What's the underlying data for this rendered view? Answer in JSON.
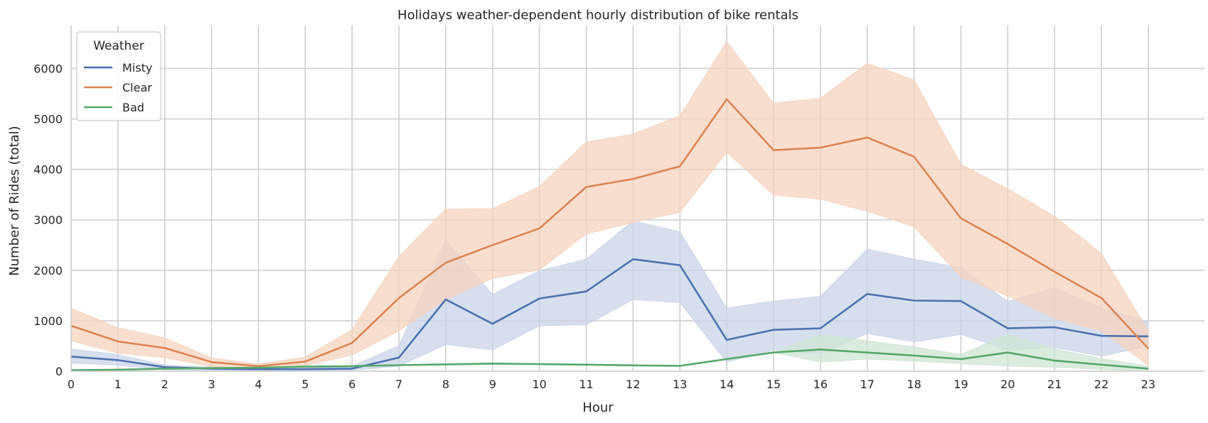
{
  "chart_data": {
    "type": "line",
    "title": "Holidays weather-dependent hourly distribution of bike rentals",
    "xlabel": "Hour",
    "ylabel": "Number of Rides (total)",
    "x": [
      0,
      1,
      2,
      3,
      4,
      5,
      6,
      7,
      8,
      9,
      10,
      11,
      12,
      13,
      14,
      15,
      16,
      17,
      18,
      19,
      20,
      21,
      22,
      23
    ],
    "x_ticks": [
      "0",
      "1",
      "2",
      "3",
      "4",
      "5",
      "6",
      "7",
      "8",
      "9",
      "10",
      "11",
      "12",
      "13",
      "14",
      "15",
      "16",
      "17",
      "18",
      "19",
      "20",
      "21",
      "22",
      "23"
    ],
    "xlim": [
      0,
      24.2
    ],
    "ylim": [
      0,
      6850
    ],
    "y_ticks": [
      0,
      1000,
      2000,
      3000,
      4000,
      5000,
      6000
    ],
    "grid": true,
    "legend": {
      "title": "Weather",
      "placement": "top-left"
    },
    "series": [
      {
        "name": "Misty",
        "color": "#4c72b0",
        "fill": "#c9d4e8",
        "values": [
          290,
          220,
          80,
          50,
          40,
          40,
          50,
          270,
          1420,
          940,
          1440,
          1580,
          2220,
          2100,
          620,
          820,
          850,
          1530,
          1400,
          1390,
          850,
          870,
          700,
          690
        ],
        "ci_low": [
          160,
          120,
          30,
          20,
          20,
          20,
          20,
          100,
          530,
          420,
          900,
          920,
          1420,
          1360,
          180,
          420,
          340,
          750,
          580,
          730,
          420,
          470,
          300,
          500
        ],
        "ci_high": [
          440,
          330,
          120,
          80,
          60,
          60,
          100,
          500,
          2600,
          1520,
          1990,
          2220,
          2980,
          2760,
          1250,
          1390,
          1480,
          2420,
          2220,
          2050,
          1380,
          1650,
          1250,
          980
        ]
      },
      {
        "name": "Clear",
        "color": "#dd8452",
        "fill": "#f6d3bf",
        "values": [
          900,
          590,
          460,
          180,
          100,
          190,
          560,
          1450,
          2150,
          2500,
          2830,
          3650,
          3810,
          4060,
          5390,
          4380,
          4430,
          4630,
          4250,
          3030,
          2520,
          1970,
          1450,
          450
        ],
        "ci_low": [
          600,
          360,
          270,
          90,
          50,
          110,
          320,
          800,
          1420,
          1840,
          2010,
          2720,
          2950,
          3150,
          4340,
          3490,
          3410,
          3170,
          2860,
          1870,
          1490,
          1050,
          800,
          120
        ],
        "ci_high": [
          1250,
          860,
          660,
          260,
          140,
          280,
          820,
          2270,
          3210,
          3220,
          3660,
          4540,
          4700,
          5060,
          6530,
          5310,
          5410,
          6100,
          5770,
          4100,
          3610,
          3070,
          2330,
          800
        ]
      },
      {
        "name": "Bad",
        "color": "#55a868",
        "fill": "#cfe5d4",
        "values": [
          20,
          30,
          50,
          60,
          70,
          90,
          100,
          120,
          135,
          150,
          140,
          130,
          115,
          105,
          240,
          370,
          430,
          370,
          310,
          240,
          370,
          210,
          130,
          50
        ],
        "ci_low": [
          20,
          30,
          50,
          60,
          70,
          90,
          100,
          120,
          135,
          150,
          140,
          130,
          115,
          105,
          240,
          370,
          180,
          240,
          200,
          150,
          100,
          80,
          40,
          0
        ],
        "ci_high": [
          20,
          30,
          50,
          60,
          70,
          90,
          100,
          120,
          135,
          150,
          140,
          130,
          115,
          105,
          240,
          370,
          730,
          600,
          480,
          330,
          730,
          440,
          250,
          100
        ]
      }
    ]
  }
}
